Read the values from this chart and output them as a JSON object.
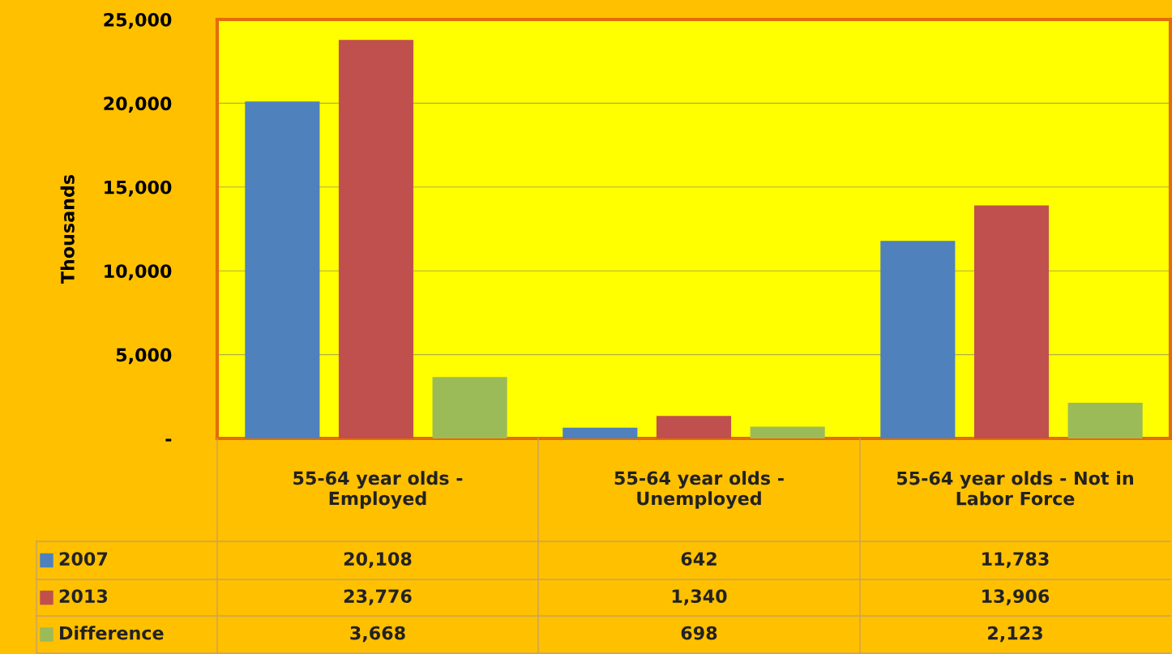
{
  "chart_data": {
    "type": "bar",
    "ylabel": "Thousands",
    "categories": [
      "55-64 year olds - Employed",
      "55-64 year olds - Unemployed",
      "55-64 year olds - Not in Labor Force"
    ],
    "series": [
      {
        "name": "2007",
        "color": "#4f81bd",
        "values": [
          20108,
          642,
          11783
        ],
        "value_labels": [
          "20,108",
          "642",
          "11,783"
        ]
      },
      {
        "name": "2013",
        "color": "#c0504d",
        "values": [
          23776,
          1340,
          13906
        ],
        "value_labels": [
          "23,776",
          "1,340",
          "13,906"
        ]
      },
      {
        "name": "Difference",
        "color": "#9bbb59",
        "values": [
          3668,
          698,
          2123
        ],
        "value_labels": [
          "3,668",
          "698",
          "2,123"
        ]
      }
    ],
    "ylim": [
      0,
      25000
    ],
    "yticks": [
      {
        "value": 0,
        "label": "-"
      },
      {
        "value": 5000,
        "label": "5,000"
      },
      {
        "value": 10000,
        "label": "10,000"
      },
      {
        "value": 15000,
        "label": "15,000"
      },
      {
        "value": 20000,
        "label": "20,000"
      },
      {
        "value": 25000,
        "label": "25,000"
      }
    ],
    "grid": "y",
    "legend": "bottom left"
  }
}
